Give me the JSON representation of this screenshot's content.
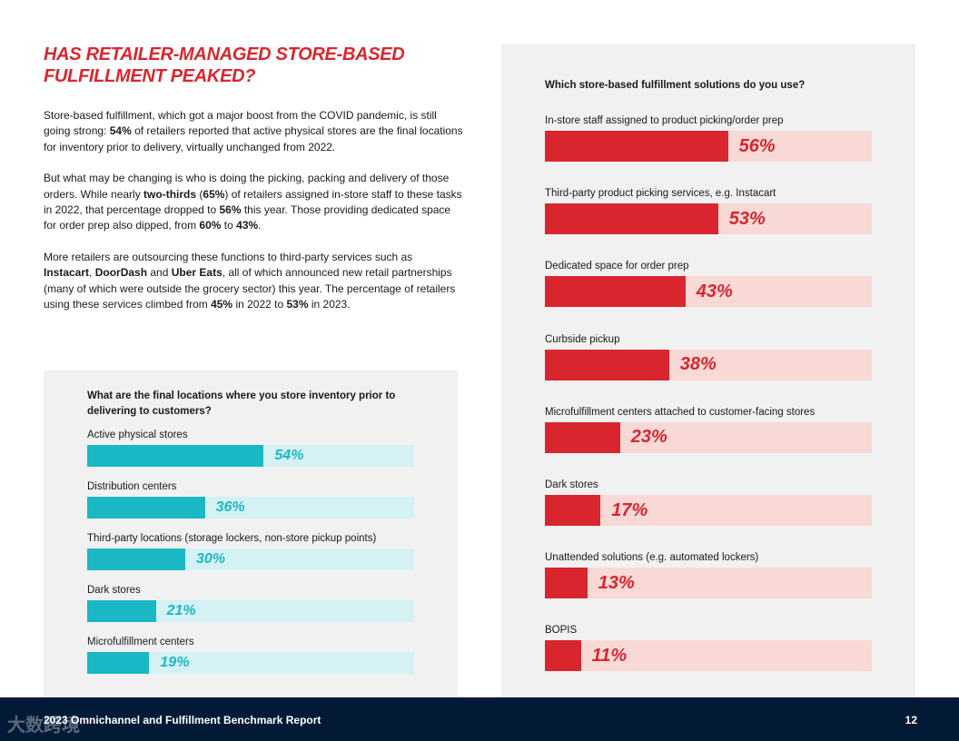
{
  "title": "HAS RETAILER-MANAGED STORE-BASED FULFILLMENT PEAKED?",
  "paragraphs": [
    {
      "parts": [
        [
          "Store-based fulfillment, which got a major boost from the COVID pandemic, is still going strong: ",
          false
        ],
        [
          "54%",
          true
        ],
        [
          " of retailers reported that active physical stores are the final locations for inventory prior to delivery, virtually unchanged from 2022.",
          false
        ]
      ]
    },
    {
      "parts": [
        [
          "But what may be changing is who is doing the picking, packing and delivery of those orders. While nearly ",
          false
        ],
        [
          "two-thirds",
          true
        ],
        [
          " (",
          false
        ],
        [
          "65%",
          true
        ],
        [
          ") of retailers assigned in-store staff to these tasks in 2022, that percentage dropped to ",
          false
        ],
        [
          "56%",
          true
        ],
        [
          " this year. Those providing dedicated space for order prep also dipped, from ",
          false
        ],
        [
          "60%",
          true
        ],
        [
          " to ",
          false
        ],
        [
          "43%",
          true
        ],
        [
          ".",
          false
        ]
      ]
    },
    {
      "parts": [
        [
          "More retailers are outsourcing these functions to third-party services such as ",
          false
        ],
        [
          "Instacart",
          true
        ],
        [
          ", ",
          false
        ],
        [
          "DoorDash",
          true
        ],
        [
          " and ",
          false
        ],
        [
          "Uber Eats",
          true
        ],
        [
          ", all of which announced new retail partnerships (many of which were outside the grocery sector) this year. The percentage of retailers using these services climbed from ",
          false
        ],
        [
          "45%",
          true
        ],
        [
          " in 2022 to ",
          false
        ],
        [
          "53%",
          true
        ],
        [
          " in 2023.",
          false
        ]
      ]
    }
  ],
  "chart_data": [
    {
      "type": "bar",
      "orientation": "horizontal",
      "title": "What are the final locations where you store inventory prior to delivering to customers?",
      "xlim": [
        0,
        100
      ],
      "color": "#1ab8c4",
      "track_color": "#d4f1f4",
      "categories": [
        "Active physical stores",
        "Distribution centers",
        "Third-party locations (storage lockers, non-store pickup points)",
        "Dark stores",
        "Microfulfillment centers"
      ],
      "values": [
        54,
        36,
        30,
        21,
        19
      ]
    },
    {
      "type": "bar",
      "orientation": "horizontal",
      "title": "Which store-based fulfillment solutions do you use?",
      "xlim": [
        0,
        100
      ],
      "color": "#d9262e",
      "track_color": "#f8d9d6",
      "categories": [
        "In-store staff assigned to product picking/order prep",
        "Third-party product picking services, e.g. Instacart",
        "Dedicated space for order prep",
        "Curbside pickup",
        "Microfulfillment centers attached to customer-facing stores",
        "Dark stores",
        "Unattended solutions (e.g. automated lockers)",
        "BOPIS"
      ],
      "values": [
        56,
        53,
        43,
        38,
        23,
        17,
        13,
        11
      ]
    }
  ],
  "footer": {
    "title": "2023 Omnichannel and Fulfillment Benchmark Report",
    "page": "12",
    "watermark": "大数跨境"
  }
}
